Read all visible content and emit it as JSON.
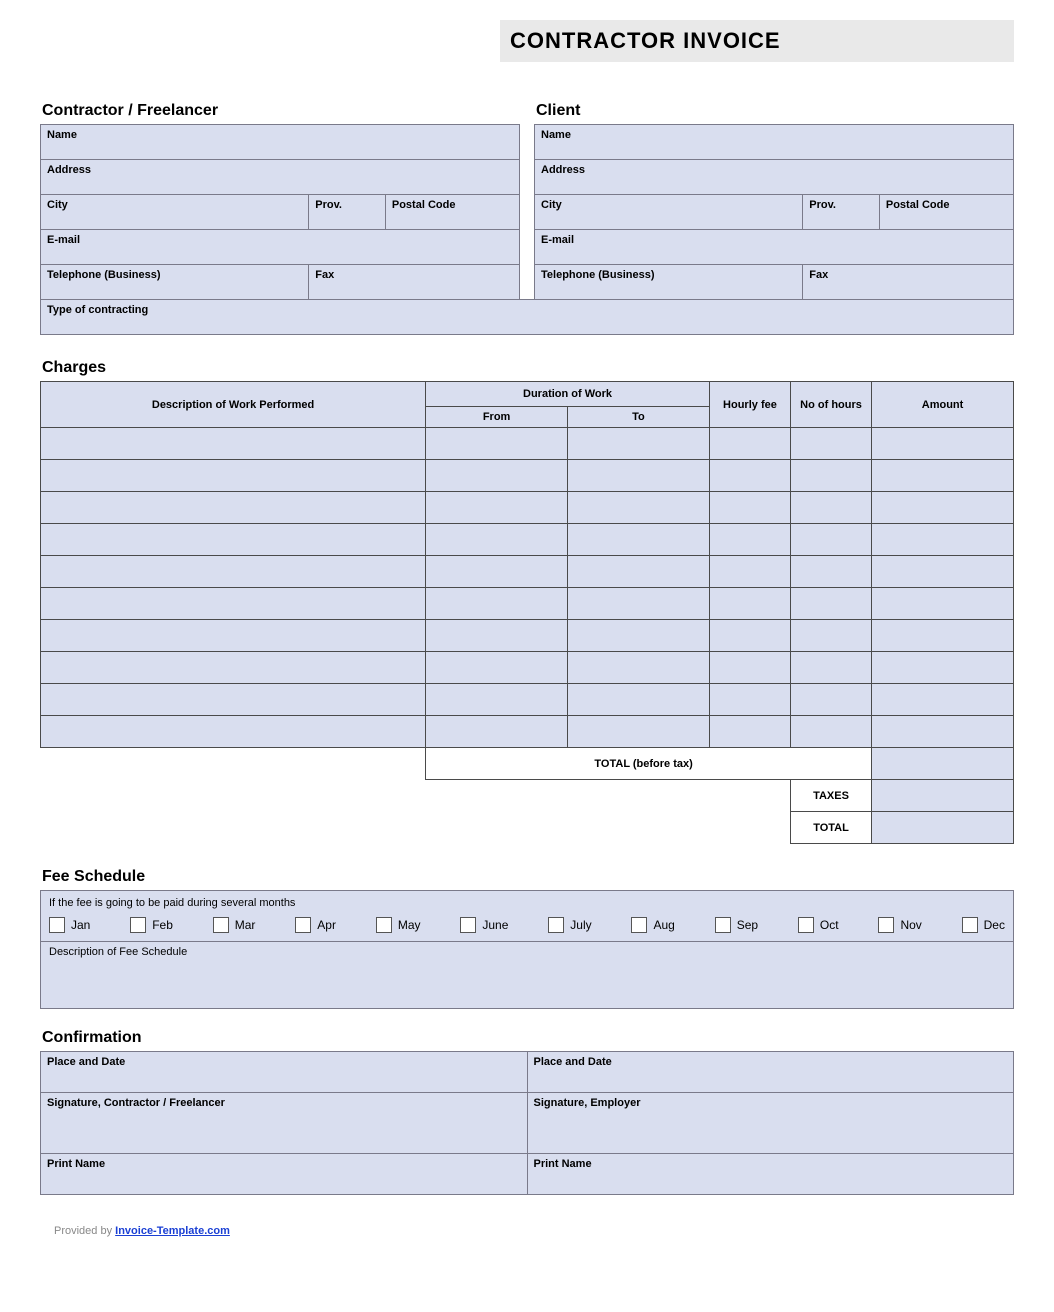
{
  "colors": {
    "field_bg": "#d9deef",
    "border": "#7a7a8a",
    "charges_border": "#4a4a4a",
    "title_bg": "#e9e9e9",
    "link": "#1a3fd4"
  },
  "title": "CONTRACTOR INVOICE",
  "contractor": {
    "heading": "Contractor / Freelancer",
    "name": "Name",
    "address": "Address",
    "city": "City",
    "prov": "Prov.",
    "postal": "Postal Code",
    "email": "E-mail",
    "tel": "Telephone (Business)",
    "fax": "Fax"
  },
  "client": {
    "heading": "Client",
    "name": "Name",
    "address": "Address",
    "city": "City",
    "prov": "Prov.",
    "postal": "Postal Code",
    "email": "E-mail",
    "tel": "Telephone (Business)",
    "fax": "Fax"
  },
  "type_of_contracting": "Type of contracting",
  "charges": {
    "heading": "Charges",
    "col_desc": "Description of Work Performed",
    "col_duration": "Duration of Work",
    "col_from": "From",
    "col_to": "To",
    "col_hourly": "Hourly fee",
    "col_hours": "No of hours",
    "col_amount": "Amount",
    "row_count": 10,
    "total_before_tax": "TOTAL (before tax)",
    "taxes": "TAXES",
    "total": "TOTAL"
  },
  "fee": {
    "heading": "Fee Schedule",
    "note": "If the fee is going to be paid during several months",
    "months": [
      "Jan",
      "Feb",
      "Mar",
      "Apr",
      "May",
      "June",
      "July",
      "Aug",
      "Sep",
      "Oct",
      "Nov",
      "Dec"
    ],
    "desc_label": "Description of Fee Schedule"
  },
  "confirm": {
    "heading": "Confirmation",
    "place_date": "Place and Date",
    "sig_contractor": "Signature, Contractor / Freelancer",
    "sig_employer": "Signature, Employer",
    "print_name": "Print Name"
  },
  "footer": {
    "provided": "Provided by ",
    "link": "Invoice-Template.com"
  }
}
